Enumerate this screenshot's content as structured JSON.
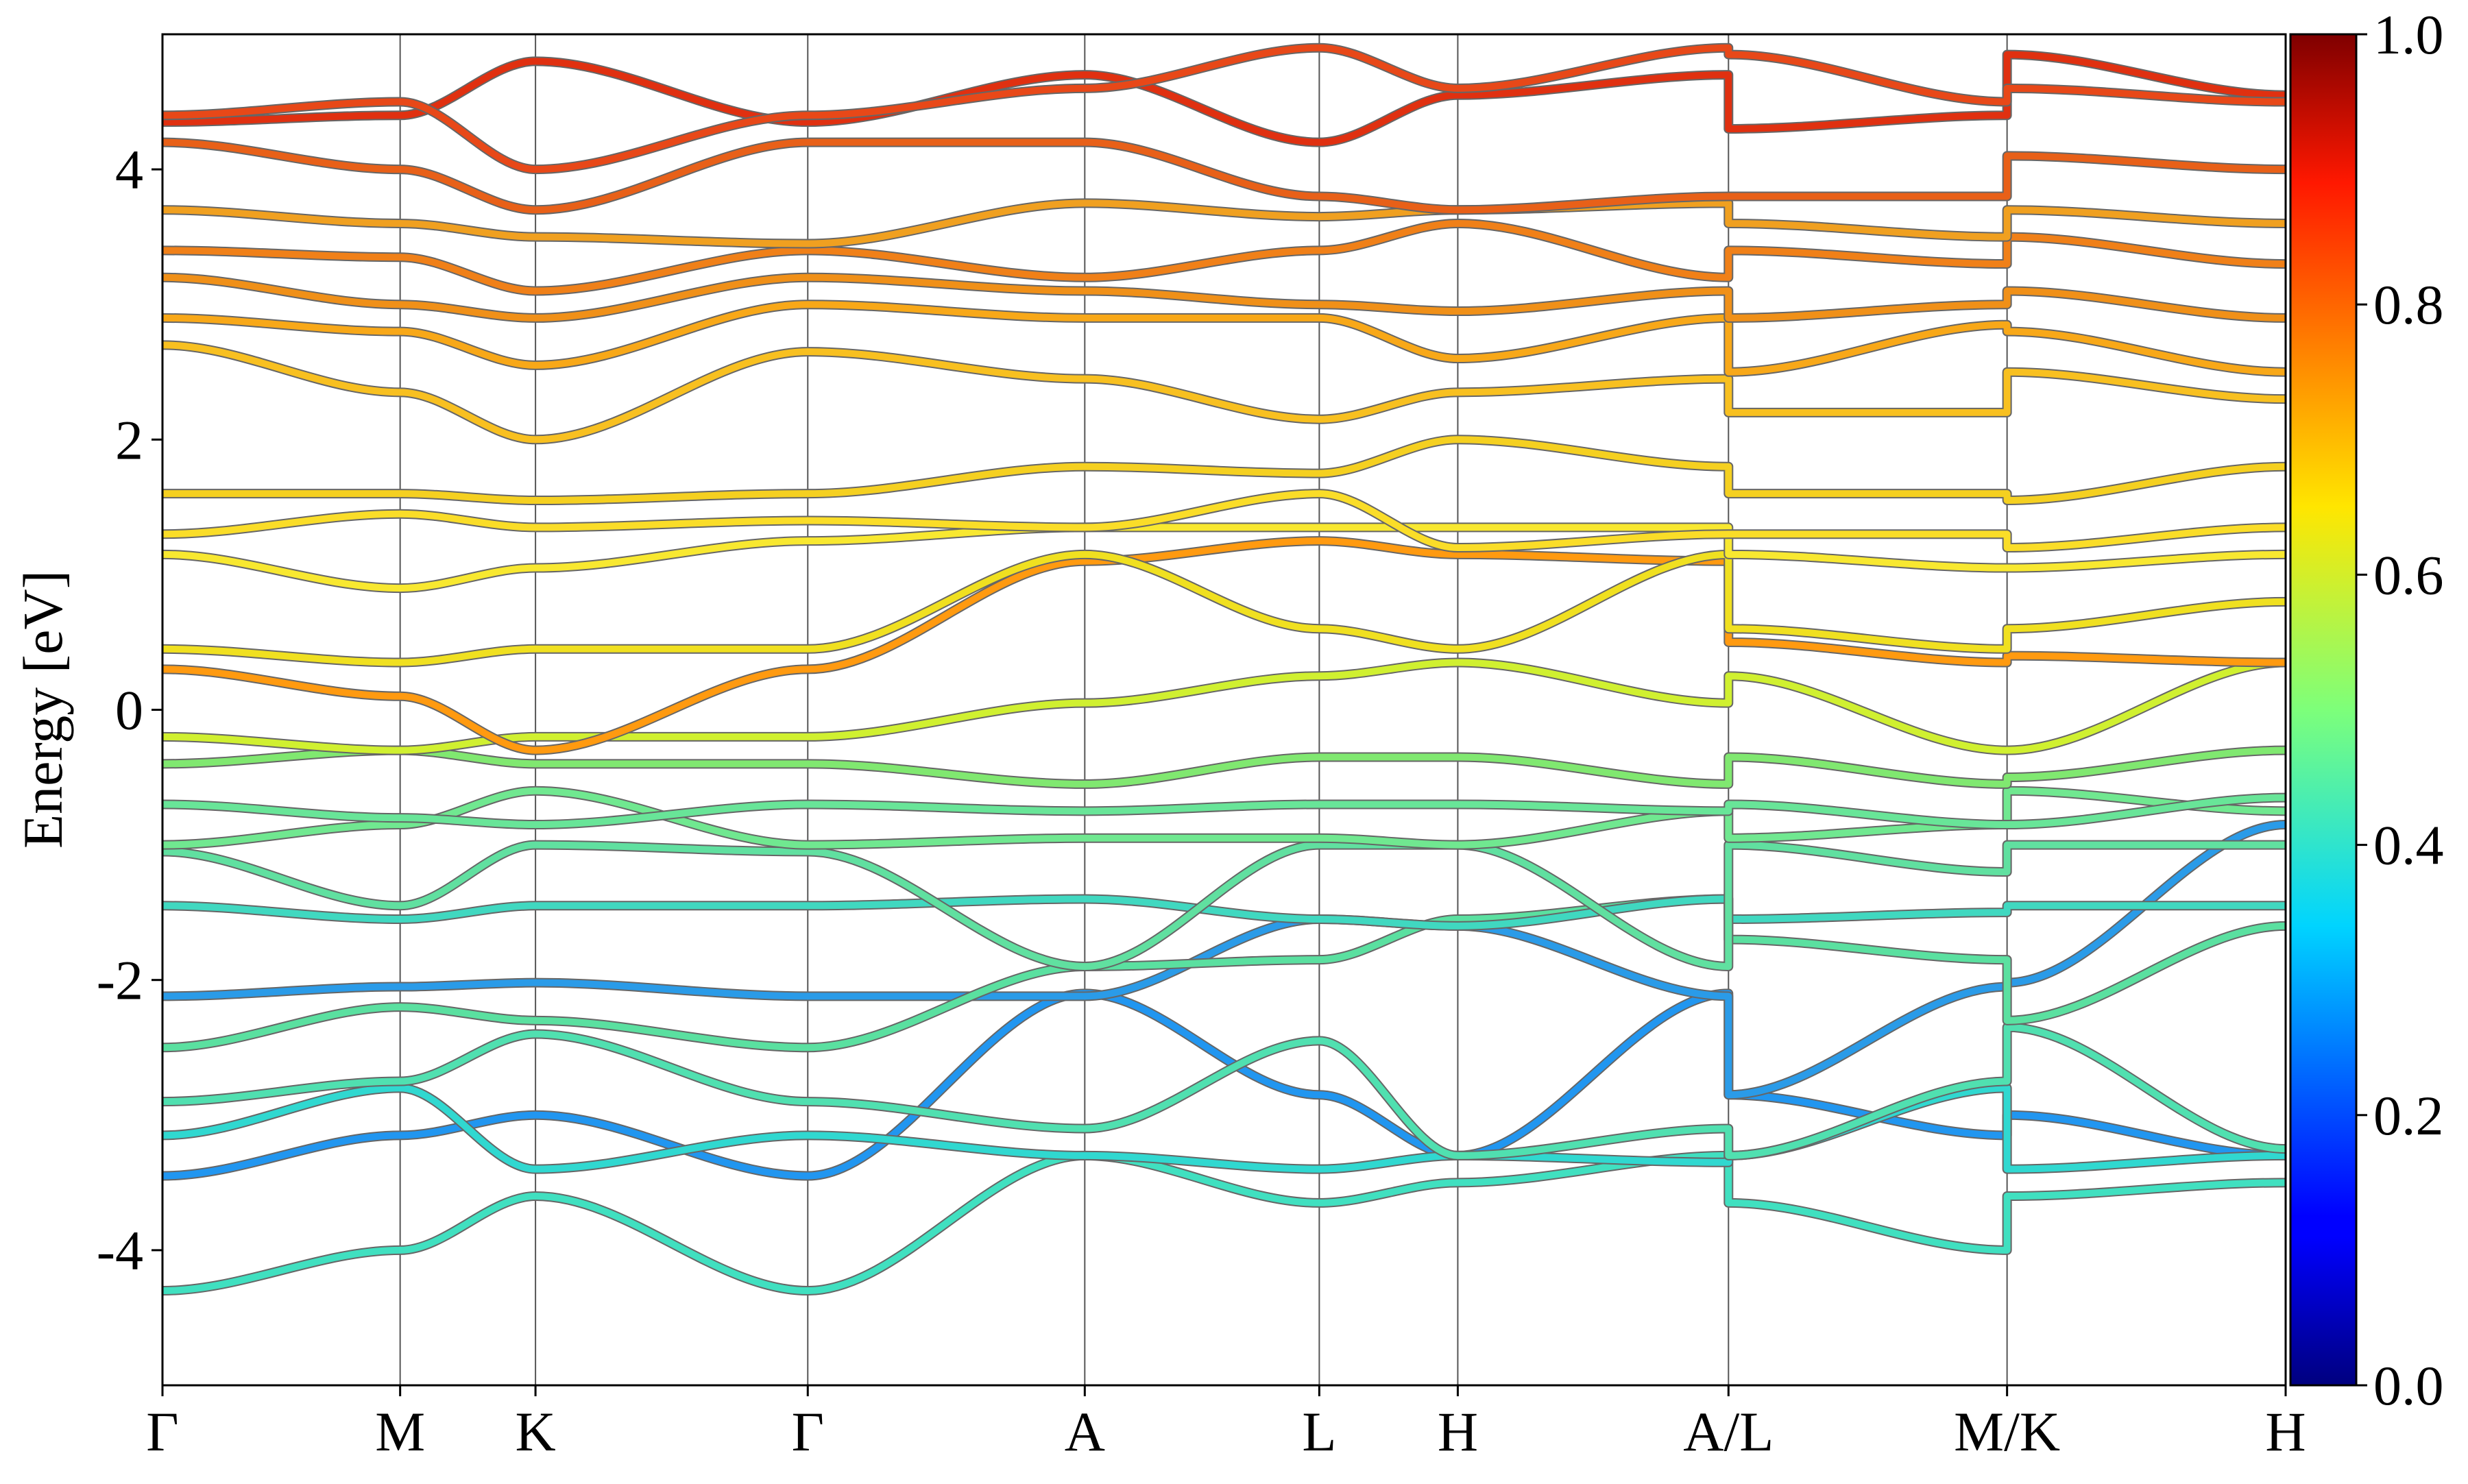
{
  "chart_data": {
    "type": "line",
    "y_label": "Energy [eV]",
    "ylim": [
      -5,
      5
    ],
    "yticks": [
      -4,
      -2,
      0,
      2,
      4
    ],
    "xlim": [
      0,
      1.349
    ],
    "xticks": [
      {
        "value": 0,
        "label": "Γ"
      },
      {
        "value": 0.151,
        "label": "M"
      },
      {
        "value": 0.237,
        "label": "K"
      },
      {
        "value": 0.41,
        "label": "Γ"
      },
      {
        "value": 0.586,
        "label": "A"
      },
      {
        "value": 0.735,
        "label": "L"
      },
      {
        "value": 0.823,
        "label": "H"
      },
      {
        "value": 0.995,
        "label": "A/L"
      },
      {
        "value": 1.172,
        "label": "M/K"
      },
      {
        "value": 1.349,
        "label": "H"
      }
    ],
    "grid": true,
    "x": [
      0,
      0.151,
      0.237,
      0.41,
      0.586,
      0.735,
      0.823,
      0.995,
      0.995,
      1.172,
      1.172,
      1.349
    ],
    "series": [
      {
        "color": "#40e0c0",
        "values": [
          -4.3,
          -4.0,
          -3.6,
          -4.3,
          -3.3,
          -3.65,
          -3.5,
          -3.3,
          -3.65,
          -4.0,
          -3.6,
          -3.5
        ]
      },
      {
        "color": "#2196f0",
        "values": [
          -3.45,
          -3.15,
          -3.0,
          -3.45,
          -2.1,
          -2.85,
          -3.3,
          -2.1,
          -2.85,
          -3.15,
          -3.0,
          -3.3
        ]
      },
      {
        "color": "#30d8d0",
        "values": [
          -3.15,
          -2.8,
          -3.4,
          -3.15,
          -3.3,
          -3.4,
          -3.3,
          -3.35,
          -3.3,
          -2.8,
          -3.4,
          -3.3
        ]
      },
      {
        "color": "#50e0b0",
        "values": [
          -2.9,
          -2.75,
          -2.4,
          -2.9,
          -3.1,
          -2.45,
          -3.3,
          -3.1,
          -3.3,
          -2.75,
          -2.35,
          -3.25
        ]
      },
      {
        "color": "#2a9be8",
        "values": [
          -2.12,
          -2.05,
          -2.02,
          -2.12,
          -2.12,
          -1.55,
          -1.6,
          -2.12,
          -2.85,
          -2.05,
          -2.02,
          -0.85
        ]
      },
      {
        "color": "#5ae0a0",
        "values": [
          -2.5,
          -2.2,
          -2.3,
          -2.5,
          -1.9,
          -1.85,
          -1.55,
          -1.4,
          -1.7,
          -1.85,
          -2.3,
          -1.6
        ]
      },
      {
        "color": "#40d8c0",
        "values": [
          -1.45,
          -1.55,
          -1.45,
          -1.45,
          -1.4,
          -1.55,
          -1.6,
          -1.4,
          -1.55,
          -1.5,
          -1.45,
          -1.45
        ]
      },
      {
        "color": "#60e0a0",
        "values": [
          -1.05,
          -1.45,
          -1.0,
          -1.05,
          -1.9,
          -1.0,
          -1.0,
          -1.9,
          -1.0,
          -1.2,
          -1.0,
          -1.0
        ]
      },
      {
        "color": "#70e890",
        "values": [
          -1.0,
          -0.85,
          -0.6,
          -1.0,
          -0.95,
          -0.95,
          -1.0,
          -0.75,
          -0.95,
          -0.85,
          -0.6,
          -0.75
        ]
      },
      {
        "color": "#68e598",
        "values": [
          -0.7,
          -0.8,
          -0.85,
          -0.7,
          -0.75,
          -0.7,
          -0.7,
          -0.75,
          -0.7,
          -0.85,
          -0.85,
          -0.65
        ]
      },
      {
        "color": "#80e870",
        "values": [
          -0.4,
          -0.3,
          -0.4,
          -0.4,
          -0.55,
          -0.35,
          -0.35,
          -0.55,
          -0.35,
          -0.55,
          -0.5,
          -0.3
        ]
      },
      {
        "color": "#d0f030",
        "values": [
          -0.2,
          -0.3,
          -0.2,
          -0.2,
          0.05,
          0.25,
          0.35,
          0.05,
          0.25,
          -0.3,
          -0.3,
          0.35
        ]
      },
      {
        "color": "#ff9a10",
        "values": [
          0.3,
          0.1,
          -0.3,
          0.3,
          1.1,
          1.25,
          1.15,
          1.1,
          0.5,
          0.35,
          0.4,
          0.35
        ]
      },
      {
        "color": "#f0e020",
        "values": [
          0.45,
          0.35,
          0.45,
          0.45,
          1.15,
          0.6,
          0.45,
          1.15,
          0.6,
          0.45,
          0.6,
          0.8
        ]
      },
      {
        "color": "#f8e830",
        "values": [
          1.15,
          0.9,
          1.05,
          1.25,
          1.35,
          1.35,
          1.35,
          1.35,
          1.15,
          1.05,
          1.05,
          1.15
        ]
      },
      {
        "color": "#fadd28",
        "values": [
          1.3,
          1.45,
          1.35,
          1.4,
          1.35,
          1.6,
          1.2,
          1.3,
          1.3,
          1.3,
          1.2,
          1.35
        ]
      },
      {
        "color": "#f5d020",
        "values": [
          1.6,
          1.6,
          1.55,
          1.6,
          1.8,
          1.75,
          2.0,
          1.8,
          1.6,
          1.6,
          1.55,
          1.8
        ]
      },
      {
        "color": "#f8c020",
        "values": [
          2.7,
          2.35,
          2.0,
          2.65,
          2.45,
          2.15,
          2.35,
          2.45,
          2.2,
          2.2,
          2.5,
          2.3
        ]
      },
      {
        "color": "#f8a818",
        "values": [
          2.9,
          2.8,
          2.55,
          3.0,
          2.9,
          2.9,
          2.6,
          2.9,
          2.5,
          2.85,
          2.8,
          2.5
        ]
      },
      {
        "color": "#f09018",
        "values": [
          3.2,
          3.0,
          2.9,
          3.2,
          3.1,
          3.0,
          2.95,
          3.1,
          2.9,
          3.0,
          3.1,
          2.9
        ]
      },
      {
        "color": "#f08018",
        "values": [
          3.4,
          3.35,
          3.1,
          3.4,
          3.2,
          3.4,
          3.6,
          3.2,
          3.4,
          3.3,
          3.5,
          3.3
        ]
      },
      {
        "color": "#f0a020",
        "values": [
          3.7,
          3.6,
          3.5,
          3.45,
          3.75,
          3.65,
          3.7,
          3.75,
          3.6,
          3.5,
          3.7,
          3.6
        ]
      },
      {
        "color": "#e86018",
        "values": [
          4.2,
          4.0,
          3.7,
          4.2,
          4.2,
          3.8,
          3.7,
          3.8,
          3.8,
          3.8,
          4.1,
          4.0
        ]
      },
      {
        "color": "#e03010",
        "values": [
          4.35,
          4.4,
          4.8,
          4.35,
          4.7,
          4.2,
          4.55,
          4.7,
          4.3,
          4.4,
          4.85,
          4.55
        ]
      },
      {
        "color": "#e84818",
        "values": [
          4.4,
          4.5,
          4.0,
          4.4,
          4.6,
          4.9,
          4.6,
          4.9,
          4.85,
          4.5,
          4.6,
          4.5
        ]
      }
    ],
    "colorbar": {
      "lim": [
        0,
        1
      ],
      "ticks": [
        {
          "value": 0,
          "label": "0.0"
        },
        {
          "value": 0.2,
          "label": "0.2"
        },
        {
          "value": 0.4,
          "label": "0.4"
        },
        {
          "value": 0.6,
          "label": "0.6"
        },
        {
          "value": 0.8,
          "label": "0.8"
        },
        {
          "value": 1,
          "label": "1.0"
        }
      ]
    }
  }
}
